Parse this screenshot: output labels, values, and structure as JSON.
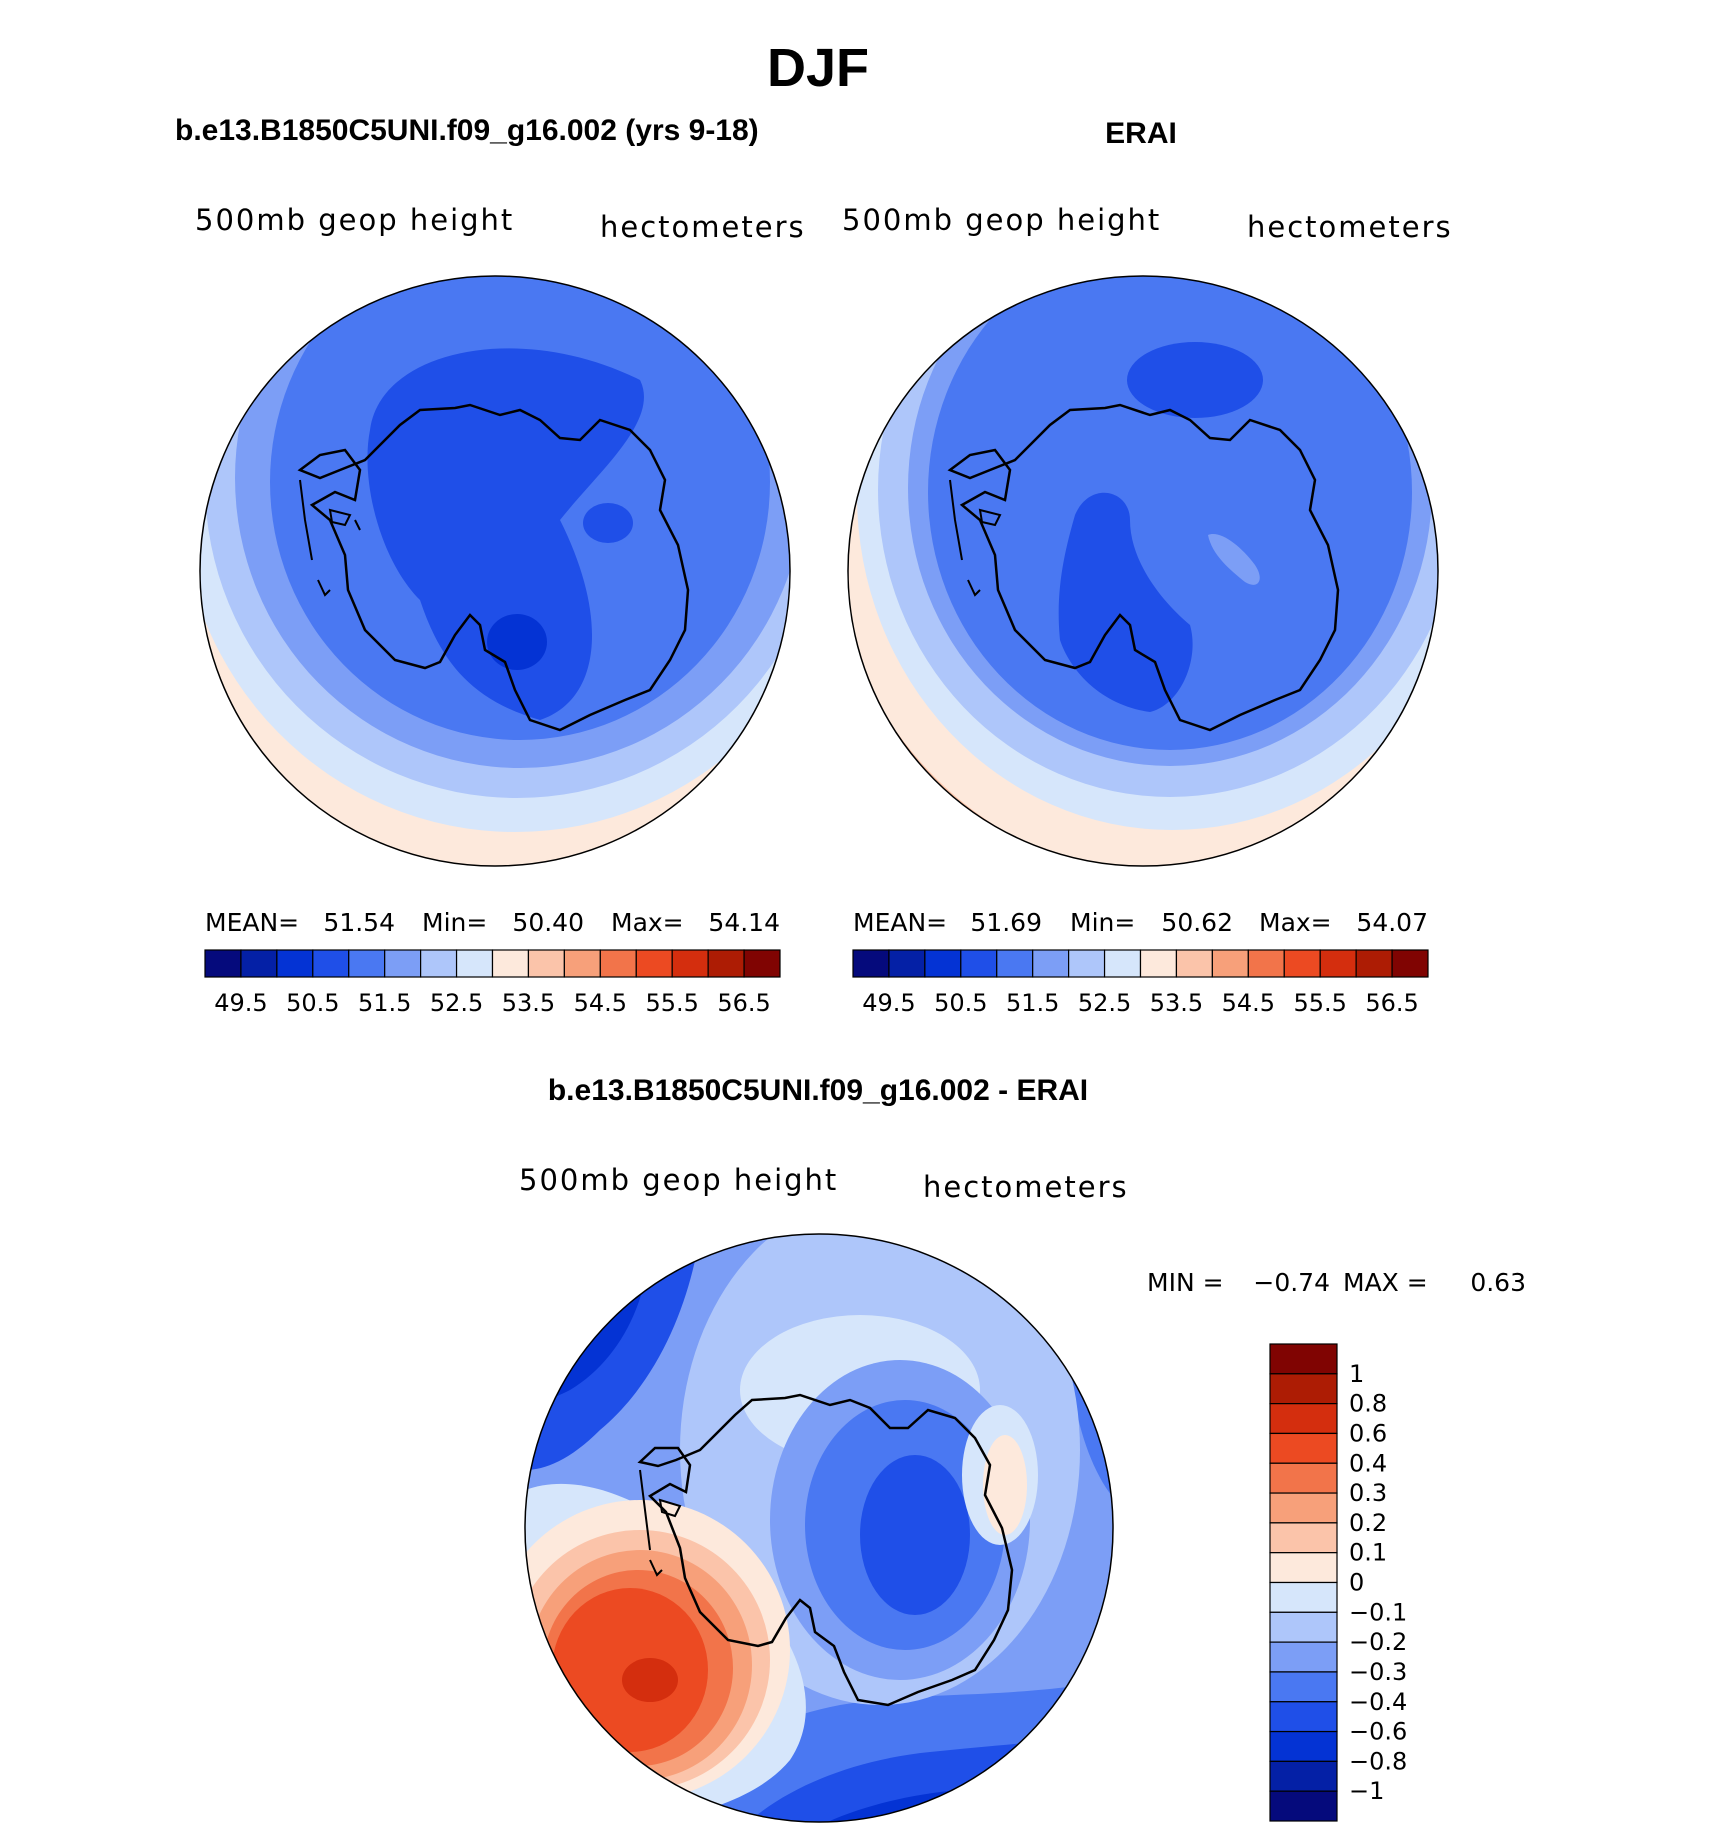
{
  "chart_data": [
    {
      "type": "heatmap",
      "title": "DJF",
      "subtitle": "b.e13.B1850C5UNI.f09_g16.002 (yrs 9-18)",
      "left_label": "500mb geop height",
      "units": "hectometers",
      "stats": {
        "mean_label": "MEAN=",
        "mean": "51.54",
        "min_label": "Min=",
        "min": "50.40",
        "max_label": "Max=",
        "max": "54.14"
      },
      "levels": [
        "49.5",
        "50.5",
        "51.5",
        "52.5",
        "53.5",
        "54.5",
        "55.5",
        "56.5"
      ]
    },
    {
      "type": "heatmap",
      "subtitle": "ERAI",
      "left_label": "500mb geop height",
      "units": "hectometers",
      "stats": {
        "mean_label": "MEAN=",
        "mean": "51.69",
        "min_label": "Min=",
        "min": "50.62",
        "max_label": "Max=",
        "max": "54.07"
      },
      "levels": [
        "49.5",
        "50.5",
        "51.5",
        "52.5",
        "53.5",
        "54.5",
        "55.5",
        "56.5"
      ]
    },
    {
      "type": "heatmap",
      "subtitle": "b.e13.B1850C5UNI.f09_g16.002 - ERAI",
      "left_label": "500mb geop height",
      "units": "hectometers",
      "stats": {
        "min_label": "MIN =",
        "min": "−0.74",
        "max_label": "MAX =",
        "max": "0.63"
      },
      "levels": [
        "1",
        "0.8",
        "0.6",
        "0.4",
        "0.3",
        "0.2",
        "0.1",
        "0",
        "−0.1",
        "−0.2",
        "−0.3",
        "−0.4",
        "−0.6",
        "−0.8",
        "−1"
      ]
    }
  ],
  "colors": {
    "abs_scale": [
      "#050a7c",
      "#0420a6",
      "#0433d4",
      "#1f4fe8",
      "#4a78f2",
      "#7c9ef6",
      "#aec6fa",
      "#d6e6fb",
      "#fde9dc",
      "#fbc4aa",
      "#f7a07a",
      "#f2744a",
      "#ec4a22",
      "#d42e0e",
      "#ad1c04",
      "#800402"
    ],
    "diff_scale": [
      "#800402",
      "#ad1c04",
      "#d42e0e",
      "#ec4a22",
      "#f2744a",
      "#f7a07a",
      "#fbc4aa",
      "#fde9dc",
      "#d6e6fb",
      "#aec6fa",
      "#7c9ef6",
      "#4a78f2",
      "#1f4fe8",
      "#0433d4",
      "#0420a6",
      "#050a7c"
    ]
  }
}
